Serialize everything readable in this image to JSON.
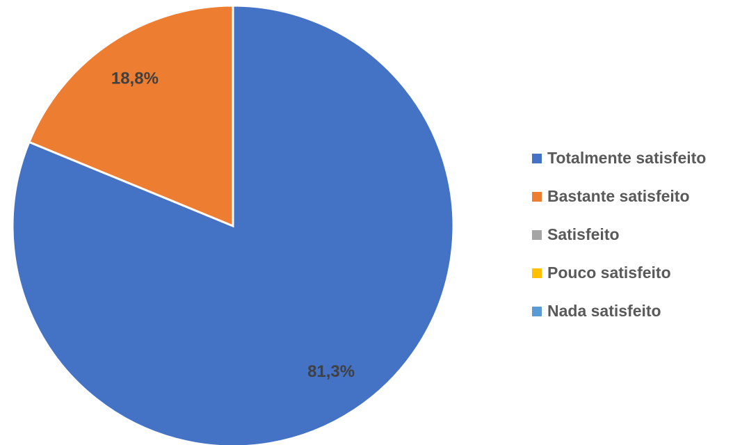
{
  "chart_data": {
    "type": "pie",
    "categories": [
      "Totalmente satisfeito",
      "Bastante satisfeito",
      "Satisfeito",
      "Pouco satisfeito",
      "Nada satisfeito"
    ],
    "values": [
      81.3,
      18.8,
      0,
      0,
      0
    ],
    "data_labels": [
      "81,3%",
      "18,8%",
      "",
      "",
      ""
    ],
    "colors": [
      "#4472C4",
      "#ED7D31",
      "#A5A5A5",
      "#FFC000",
      "#5B9BD5"
    ],
    "legend_position": "right",
    "start_angle": "12 o'clock, clockwise"
  }
}
